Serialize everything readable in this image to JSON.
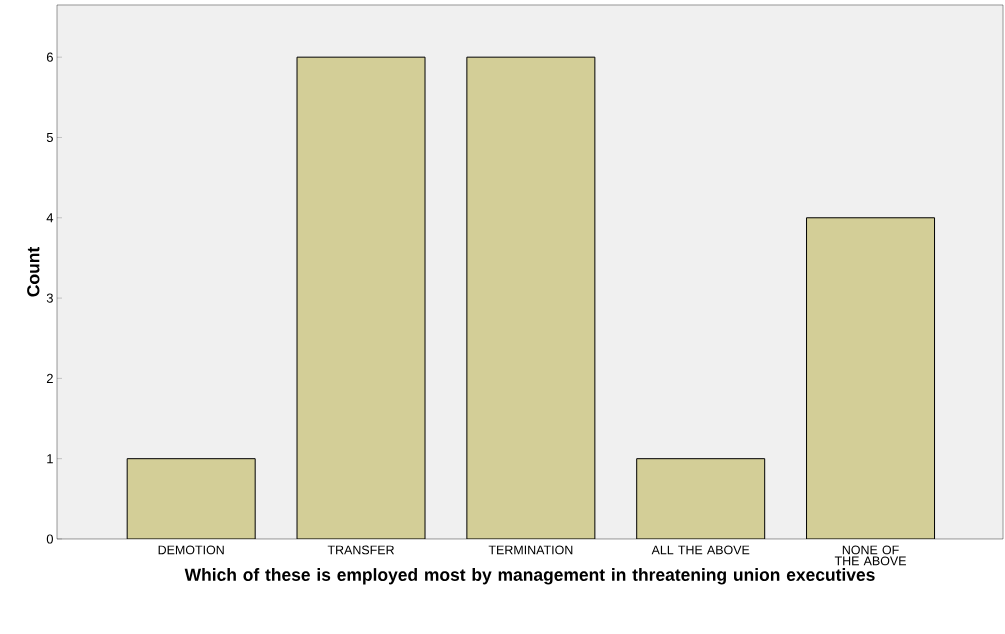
{
  "chart_data": {
    "type": "bar",
    "xlabel": "Which of these is employed most by management in threatening union executives",
    "ylabel": "Count",
    "categories": [
      "DEMOTION",
      "TRANSFER",
      "TERMINATION",
      "ALL THE ABOVE",
      "NONE OF THE ABOVE"
    ],
    "values": [
      1,
      6,
      6,
      1,
      4
    ],
    "color": "#d3ce97",
    "ylim": [
      0,
      6.65
    ],
    "yticks": [
      0,
      1,
      2,
      3,
      4,
      5,
      6
    ],
    "grid": false
  }
}
